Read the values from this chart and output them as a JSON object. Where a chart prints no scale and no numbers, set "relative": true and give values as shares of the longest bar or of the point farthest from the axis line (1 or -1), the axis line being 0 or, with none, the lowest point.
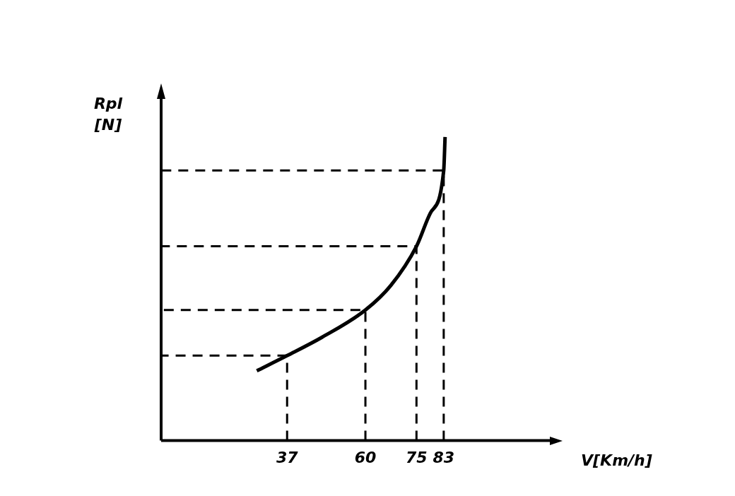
{
  "chart_data": {
    "type": "line",
    "xlabel": "V[Km/h]",
    "ylabel": "Rpl\n[N]",
    "relative": true,
    "xlim": [
      0,
      115
    ],
    "xticks": [
      37,
      60,
      75,
      83
    ],
    "series": [
      {
        "color": "#000000",
        "x": [
          28.1,
          37,
          47.2,
          60,
          67.4,
          75,
          79.1,
          83,
          83.4
        ],
        "values": [
          0.23,
          0.28,
          0.34,
          0.43,
          0.51,
          0.64,
          0.75,
          0.89,
          1.0
        ]
      }
    ],
    "ref_lines": [
      {
        "axis": "x",
        "value": 37,
        "line_style": "dashed"
      },
      {
        "axis": "x",
        "value": 60,
        "line_style": "dashed"
      },
      {
        "axis": "x",
        "value": 75,
        "line_style": "dashed"
      },
      {
        "axis": "x",
        "value": 83,
        "line_style": "dashed"
      }
    ],
    "grid": false,
    "legend": false,
    "marker": "none",
    "line_style": "solid"
  }
}
